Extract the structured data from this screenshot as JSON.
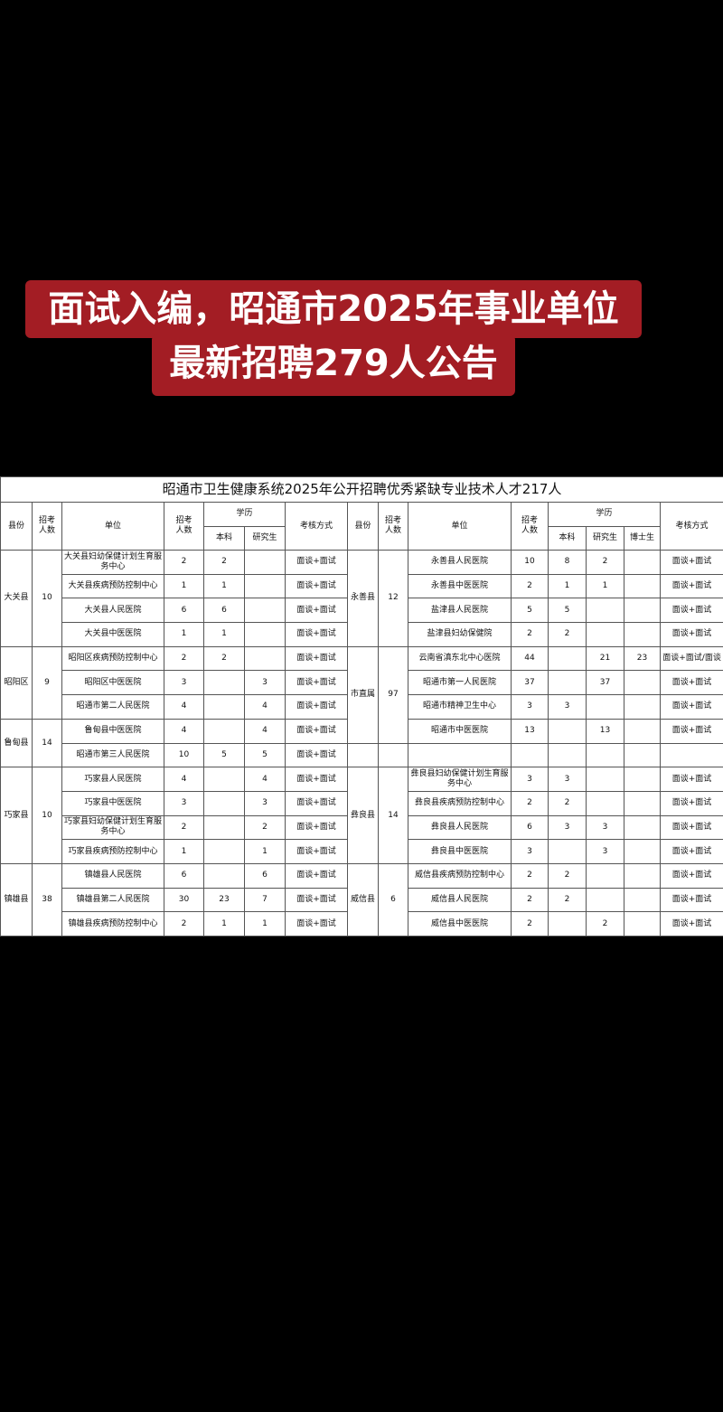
{
  "banner": {
    "line1": "面试入编，昭通市2025年事业单位",
    "line2": "最新招聘279人公告"
  },
  "table": {
    "title": "昭通市卫生健康系统2025年公开招聘优秀紧缺专业技术人才217人",
    "headers": {
      "county": "县份",
      "count": "招考\n人数",
      "unit": "单位",
      "edu": "学历",
      "bachelor": "本科",
      "master": "研究生",
      "doctor": "博士生",
      "method": "考核方式"
    },
    "left": [
      {
        "county": "大关县",
        "count": 10,
        "rows": [
          [
            "大关县妇幼保健计划生育服务中心",
            2,
            2,
            null,
            "面谈+面试"
          ],
          [
            "大关县疾病预防控制中心",
            1,
            1,
            null,
            "面谈+面试"
          ],
          [
            "大关县人民医院",
            6,
            6,
            null,
            "面谈+面试"
          ],
          [
            "大关县中医医院",
            1,
            1,
            null,
            "面谈+面试"
          ]
        ]
      },
      {
        "county": "昭阳区",
        "count": 9,
        "rows": [
          [
            "昭阳区疾病预防控制中心",
            2,
            2,
            null,
            "面谈+面试"
          ],
          [
            "昭阳区中医医院",
            3,
            null,
            3,
            "面谈+面试"
          ],
          [
            "昭通市第二人民医院",
            4,
            null,
            4,
            "面谈+面试"
          ]
        ]
      },
      {
        "county": "鲁甸县",
        "count": 14,
        "rows": [
          [
            "鲁甸县中医医院",
            4,
            null,
            4,
            "面谈+面试"
          ],
          [
            "昭通市第三人民医院",
            10,
            5,
            5,
            "面谈+面试"
          ]
        ]
      },
      {
        "county": "巧家县",
        "count": 10,
        "rows": [
          [
            "巧家县人民医院",
            4,
            null,
            4,
            "面谈+面试"
          ],
          [
            "巧家县中医医院",
            3,
            null,
            3,
            "面谈+面试"
          ],
          [
            "巧家县妇幼保健计划生育服务中心",
            2,
            null,
            2,
            "面谈+面试"
          ],
          [
            "巧家县疾病预防控制中心",
            1,
            null,
            1,
            "面谈+面试"
          ]
        ]
      },
      {
        "county": "镇雄县",
        "count": 38,
        "rows": [
          [
            "镇雄县人民医院",
            6,
            null,
            6,
            "面谈+面试"
          ],
          [
            "镇雄县第二人民医院",
            30,
            23,
            7,
            "面谈+面试"
          ],
          [
            "镇雄县疾病预防控制中心",
            2,
            1,
            1,
            "面谈+面试"
          ]
        ]
      }
    ],
    "right": [
      {
        "county": "永善县",
        "count": 12,
        "rows": [
          [
            "永善县人民医院",
            10,
            8,
            2,
            null,
            "面谈+面试"
          ],
          [
            "永善县中医医院",
            2,
            1,
            1,
            null,
            "面谈+面试"
          ],
          [
            "盐津县人民医院",
            5,
            5,
            null,
            null,
            "面谈+面试"
          ],
          [
            "盐津县妇幼保健院",
            2,
            2,
            null,
            null,
            "面谈+面试"
          ]
        ]
      },
      {
        "county": "市直属",
        "count": 97,
        "rows": [
          [
            "云南省滇东北中心医院",
            44,
            null,
            21,
            23,
            "面谈+面试/面谈"
          ],
          [
            "昭通市第一人民医院",
            37,
            null,
            37,
            null,
            "面谈+面试"
          ],
          [
            "昭通市精神卫生中心",
            3,
            3,
            null,
            null,
            "面谈+面试"
          ],
          [
            "昭通市中医医院",
            13,
            null,
            13,
            null,
            "面谈+面试"
          ]
        ]
      },
      {
        "county": null,
        "count": null,
        "rows": [
          [
            null,
            null,
            null,
            null,
            null,
            null
          ]
        ]
      },
      {
        "county": "彝良县",
        "count": 14,
        "rows": [
          [
            "彝良县妇幼保健计划生育服务中心",
            3,
            3,
            null,
            null,
            "面谈+面试"
          ],
          [
            "彝良县疾病预防控制中心",
            2,
            2,
            null,
            null,
            "面谈+面试"
          ],
          [
            "彝良县人民医院",
            6,
            3,
            3,
            null,
            "面谈+面试"
          ],
          [
            "彝良县中医医院",
            3,
            null,
            3,
            null,
            "面谈+面试"
          ]
        ]
      },
      {
        "county": "威信县",
        "count": 6,
        "rows": [
          [
            "威信县疾病预防控制中心",
            2,
            2,
            null,
            null,
            "面谈+面试"
          ],
          [
            "威信县人民医院",
            2,
            2,
            null,
            null,
            "面谈+面试"
          ],
          [
            "威信县中医医院",
            2,
            null,
            2,
            null,
            "面谈+面试"
          ]
        ]
      }
    ]
  }
}
